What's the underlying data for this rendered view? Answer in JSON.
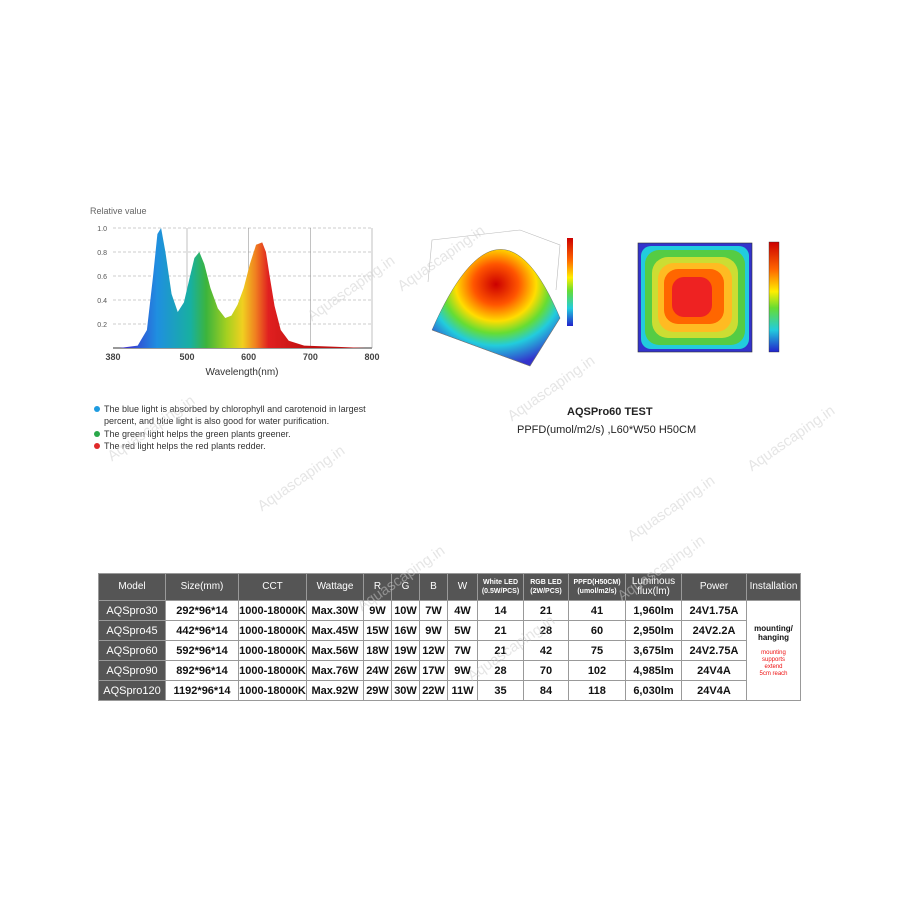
{
  "watermark": "Aquascaping.in",
  "spectrum": {
    "chart_data": {
      "type": "area",
      "y_label": "Relative value",
      "x_label": "Wavelength(nm)",
      "x": [
        390,
        420,
        435,
        445,
        452,
        458,
        465,
        475,
        485,
        495,
        505,
        512,
        520,
        528,
        538,
        550,
        562,
        572,
        582,
        592,
        602,
        612,
        622,
        628,
        634,
        642,
        652,
        665,
        690,
        740,
        790
      ],
      "values": [
        0,
        0.02,
        0.15,
        0.6,
        0.95,
        1.0,
        0.8,
        0.45,
        0.3,
        0.38,
        0.6,
        0.75,
        0.8,
        0.7,
        0.5,
        0.33,
        0.25,
        0.27,
        0.36,
        0.5,
        0.7,
        0.86,
        0.88,
        0.8,
        0.6,
        0.35,
        0.15,
        0.06,
        0.02,
        0.01,
        0
      ],
      "xlim": [
        380,
        800
      ],
      "xticks": [
        380,
        500,
        600,
        700,
        800
      ],
      "ylim": [
        0,
        1
      ],
      "yticks": [
        0.2,
        0.4,
        0.6,
        {
          "value": 0.8,
          "label": "0.8"
        },
        {
          "value": 1,
          "label": "1.0"
        }
      ],
      "grid": true
    }
  },
  "notes": [
    {
      "color": "#1e9be0",
      "text": "The blue light is absorbed by chlorophyll and carotenoid in largest percent, and blue light is also good for water purification."
    },
    {
      "color": "#2aa84a",
      "text": "The green light helps the green plants greener."
    },
    {
      "color": "#e02a2a",
      "text": "The red light helps the red plants redder."
    }
  ],
  "test": {
    "title": "AQSPro60 TEST",
    "subtitle": "PPFD(umol/m2/s) ,L60*W50 H50CM"
  },
  "table": {
    "header": [
      "Model",
      "Size(mm)",
      "CCT",
      "Wattage",
      "R",
      "G",
      "B",
      "W",
      "White LED\n(0.5W/PCS)",
      "RGB LED\n(2W/PCS)",
      "PPFD(H50CM)\n(umol/m2/s)",
      "Luminous\nflux(lm)",
      "Power",
      "Installation"
    ],
    "rows": [
      [
        "AQSpro30",
        "292*96*14",
        "1000-18000K",
        "Max.30W",
        "9W",
        "10W",
        "7W",
        "4W",
        "14",
        "21",
        "41",
        "1,960lm",
        "24V1.75A"
      ],
      [
        "AQSpro45",
        "442*96*14",
        "1000-18000K",
        "Max.45W",
        "15W",
        "16W",
        "9W",
        "5W",
        "21",
        "28",
        "60",
        "2,950lm",
        "24V2.2A"
      ],
      [
        "AQSpro60",
        "592*96*14",
        "1000-18000K",
        "Max.56W",
        "18W",
        "19W",
        "12W",
        "7W",
        "21",
        "42",
        "75",
        "3,675lm",
        "24V2.75A"
      ],
      [
        "AQSpro90",
        "892*96*14",
        "1000-18000K",
        "Max.76W",
        "24W",
        "26W",
        "17W",
        "9W",
        "28",
        "70",
        "102",
        "4,985lm",
        "24V4A"
      ],
      [
        "AQSpro120",
        "1192*96*14",
        "1000-18000K",
        "Max.92W",
        "29W",
        "30W",
        "22W",
        "11W",
        "35",
        "84",
        "118",
        "6,030lm",
        "24V4A"
      ]
    ],
    "installation": {
      "main": "mounting/\nhanging",
      "note": "mounting\nsupports\nextend\n5cm reach"
    }
  }
}
